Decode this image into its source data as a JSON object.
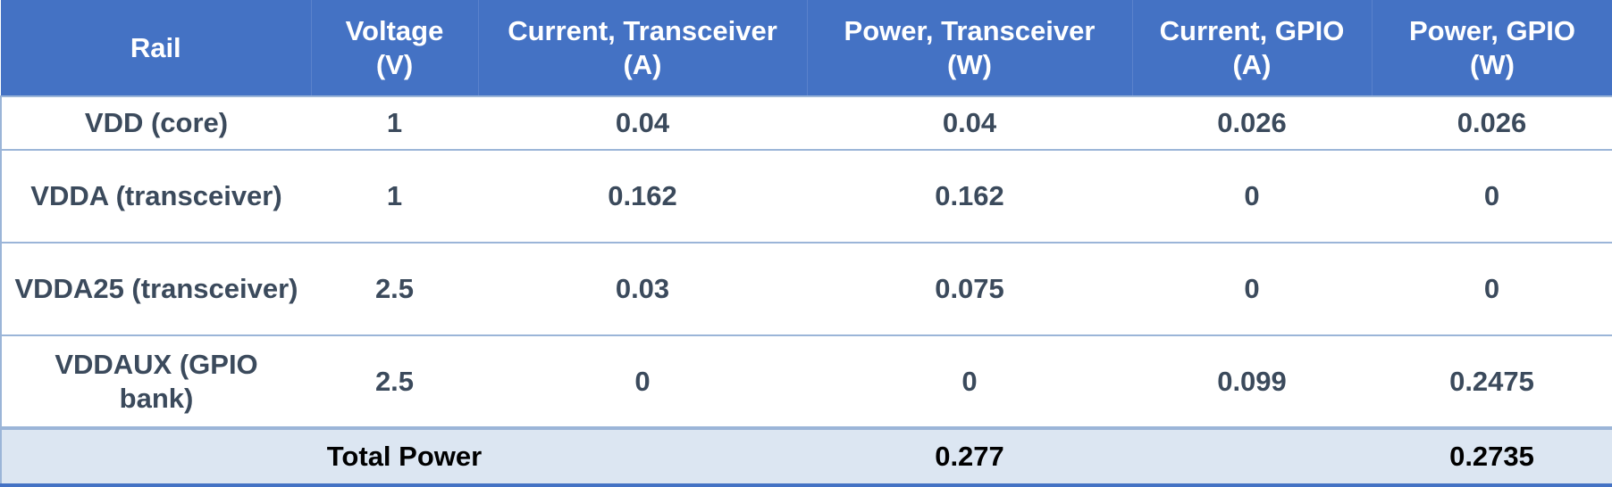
{
  "table": {
    "header": [
      "Rail",
      "Voltage (V)",
      "Current, Transceiver (A)",
      "Power, Transceiver (W)",
      "Current, GPIO (A)",
      "Power, GPIO (W)"
    ],
    "rows": [
      [
        "VDD (core)",
        "1",
        "0.04",
        "0.04",
        "0.026",
        "0.026"
      ],
      [
        "VDDA (transceiver)",
        "1",
        "0.162",
        "0.162",
        "0",
        "0"
      ],
      [
        "VDDA25 (transceiver)",
        "2.5",
        "0.03",
        "0.075",
        "0",
        "0"
      ],
      [
        "VDDAUX (GPIO bank)",
        "2.5",
        "0",
        "0",
        "0.099",
        "0.2475"
      ]
    ],
    "total": {
      "label": "Total Power",
      "power_transceiver": "0.277",
      "power_gpio": "0.2735"
    }
  }
}
